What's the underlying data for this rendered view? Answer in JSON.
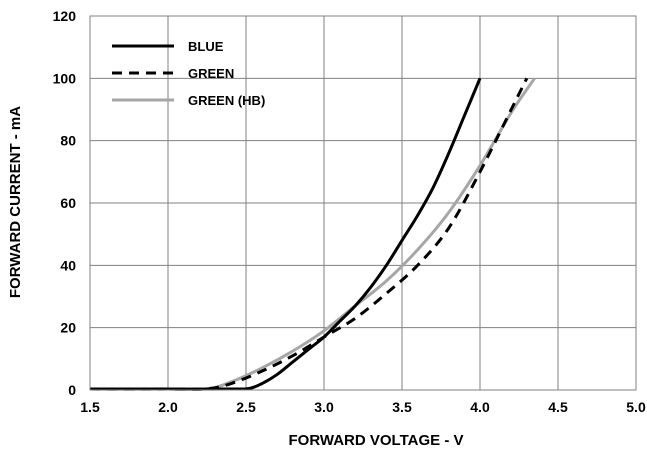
{
  "chart_data": {
    "type": "line",
    "title": "",
    "xlabel": "FORWARD VOLTAGE - V",
    "ylabel": "FORWARD CURRENT - mA",
    "xlim": [
      1.5,
      5.0
    ],
    "ylim": [
      0,
      120
    ],
    "xticks": [
      "1.5",
      "2.0",
      "2.5",
      "3.0",
      "3.5",
      "4.0",
      "4.5",
      "5.0"
    ],
    "yticks": [
      "0",
      "20",
      "40",
      "60",
      "80",
      "100",
      "120"
    ],
    "grid": true,
    "legend_position": "top-left",
    "series": [
      {
        "name": "BLUE",
        "color": "#000000",
        "dash": "solid",
        "x": [
          1.5,
          2.0,
          2.4,
          2.52,
          2.6,
          2.7,
          2.8,
          2.9,
          3.0,
          3.1,
          3.2,
          3.3,
          3.4,
          3.5,
          3.6,
          3.7,
          3.8,
          3.9,
          4.0
        ],
        "y": [
          0.3,
          0.3,
          0.3,
          0.5,
          2,
          5,
          9,
          13,
          17,
          22,
          27,
          33,
          40,
          48,
          56,
          65,
          76,
          88,
          100
        ]
      },
      {
        "name": "GREEN",
        "color": "#000000",
        "dash": "dashed",
        "x": [
          1.5,
          2.0,
          2.25,
          2.4,
          2.6,
          2.8,
          3.0,
          3.2,
          3.4,
          3.6,
          3.8,
          4.0,
          4.2,
          4.3
        ],
        "y": [
          0.3,
          0.3,
          0.4,
          2,
          6,
          11,
          17,
          23,
          31,
          40,
          52,
          70,
          90,
          100
        ]
      },
      {
        "name": "GREEN (HB)",
        "color": "#a6a6a6",
        "dash": "solid",
        "x": [
          1.5,
          2.0,
          2.25,
          2.4,
          2.6,
          2.8,
          3.0,
          3.2,
          3.4,
          3.6,
          3.8,
          4.0,
          4.2,
          4.35
        ],
        "y": [
          0.3,
          0.3,
          0.4,
          2.5,
          7,
          12.5,
          19,
          27,
          35,
          45,
          57,
          72,
          89,
          100
        ]
      }
    ]
  }
}
